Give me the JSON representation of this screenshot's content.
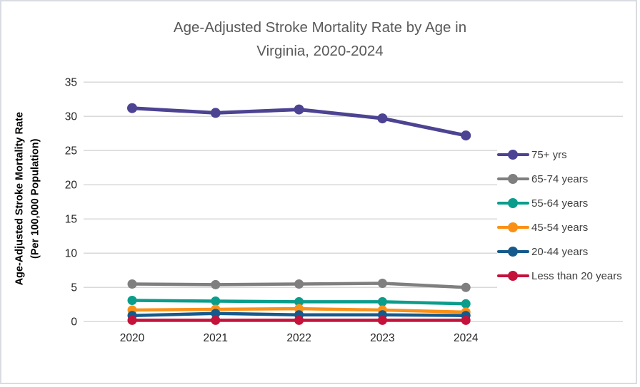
{
  "frame": {
    "border_color": "#d9dce1",
    "background": "#ffffff"
  },
  "chart_data": {
    "type": "line",
    "title": "Age-Adjusted Stroke Mortality Rate by Age in\nVirginia, 2020-2024",
    "ylabel": "Age-Adjusted Stroke Mortality Rate\n(Per 100,000 Population)",
    "xlabel": "",
    "categories": [
      "2020",
      "2021",
      "2022",
      "2023",
      "2024"
    ],
    "yticks": [
      0,
      5,
      10,
      15,
      20,
      25,
      30,
      35
    ],
    "ylim": [
      0,
      35
    ],
    "grid": "horizontal",
    "gridline_color": "#d9d9d9",
    "legend_position": "right",
    "series": [
      {
        "name": "75+ yrs",
        "color": "#4c4392",
        "values": [
          31.2,
          30.5,
          31.0,
          29.7,
          27.2
        ]
      },
      {
        "name": "65-74 years",
        "color": "#7f7f7f",
        "values": [
          5.5,
          5.4,
          5.5,
          5.6,
          5.0
        ]
      },
      {
        "name": "55-64 years",
        "color": "#0a9d8c",
        "values": [
          3.1,
          3.0,
          2.9,
          2.9,
          2.6
        ]
      },
      {
        "name": "45-54 years",
        "color": "#fa9117",
        "values": [
          1.7,
          1.8,
          1.9,
          1.7,
          1.4
        ]
      },
      {
        "name": "20-44 years",
        "color": "#155a8d",
        "values": [
          0.9,
          1.2,
          1.0,
          1.0,
          0.9
        ]
      },
      {
        "name": "Less than 20 years",
        "color": "#c4123b",
        "values": [
          0.2,
          0.2,
          0.2,
          0.2,
          0.2
        ]
      }
    ],
    "text_colors": {
      "title": "#595959",
      "axis": "#262626",
      "legend": "#3f3f3f"
    }
  }
}
